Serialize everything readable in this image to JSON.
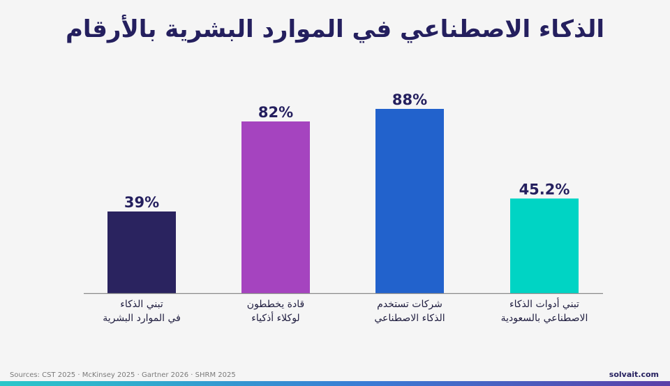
{
  "chart_data": {
    "type": "bar",
    "title": "الذكاء الاصطناعي في الموارد البشرية بالأرقام",
    "categories": [
      [
        "تبني الذكاء",
        "في الموارد البشرية"
      ],
      [
        "قادة يخططون",
        "لوكلاء أذكياء"
      ],
      [
        "شركات تستخدم",
        "الذكاء الاصطناعي"
      ],
      [
        "تبني أدوات الذكاء",
        "الاصطناعي بالسعودية"
      ]
    ],
    "values": [
      39,
      82,
      88,
      45.2
    ],
    "value_labels": [
      "39%",
      "82%",
      "88%",
      "45.2%"
    ],
    "colors": [
      "#2a235f",
      "#a544bf",
      "#2262cc",
      "#00d4c4"
    ],
    "ylim": [
      0,
      100
    ],
    "grid": false
  },
  "footer": {
    "sources": "Sources: CST 2025 · McKinsey 2025 · Gartner 2026 · SHRM 2025",
    "brand": "solvait.com"
  }
}
